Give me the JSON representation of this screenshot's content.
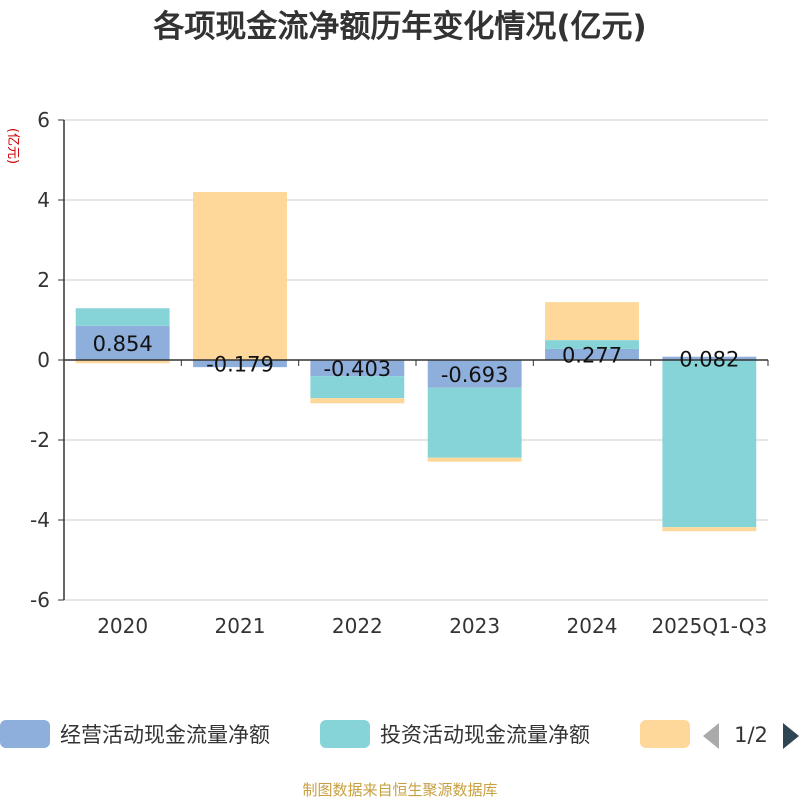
{
  "chart_data": {
    "type": "bar",
    "stacked": true,
    "title": "各项现金流净额历年变化情况(亿元)",
    "ylabel": "(亿元)",
    "xlabel": "",
    "ylim": [
      -6,
      6
    ],
    "yticks": [
      6,
      4,
      2,
      0,
      -2,
      -4,
      -6
    ],
    "grid": true,
    "categories": [
      "2020",
      "2021",
      "2022",
      "2023",
      "2024",
      "2025Q1-Q3"
    ],
    "series": [
      {
        "name": "经营活动现金流量净额",
        "color": "#8eaedb",
        "values": [
          0.854,
          -0.179,
          -0.403,
          -0.693,
          0.277,
          0.082
        ],
        "labels": [
          "0.854",
          "-0.179",
          "-0.403",
          "-0.693",
          "0.277",
          "0.082"
        ]
      },
      {
        "name": "投资活动现金流量净额",
        "color": "#86d4d8",
        "values": [
          0.44,
          0.0,
          -0.55,
          -1.75,
          0.22,
          -4.18
        ]
      },
      {
        "name": "",
        "color": "#fdd89a",
        "values": [
          -0.08,
          4.2,
          -0.13,
          -0.1,
          0.95,
          -0.1
        ]
      }
    ],
    "legend": {
      "position": "bottom",
      "page": "1/2"
    }
  },
  "source": "制图数据来自恒生聚源数据库"
}
